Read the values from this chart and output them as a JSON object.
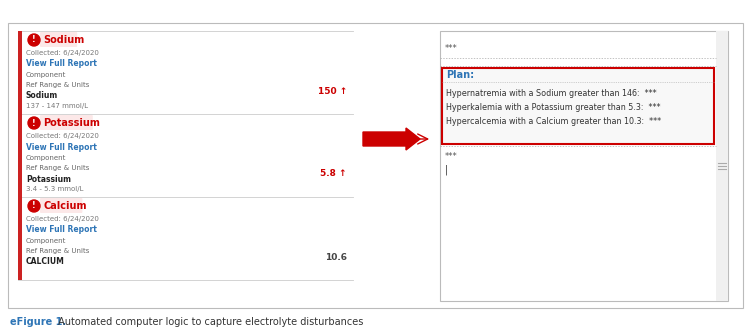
{
  "outer_border_color": "#cccccc",
  "caption_bold": "eFigure 1.",
  "caption_normal": " Automated computer logic to capture electrolyte disturbances",
  "caption_bold_color": "#2e75b6",
  "caption_normal_color": "#333333",
  "arrow_color": "#cc0000",
  "highlight_border": "#cc0000",
  "sections": [
    {
      "title": "Sodium",
      "icon_color": "#cc0000",
      "title_bg": "#fce4e4",
      "collected": "Collected: 6/24/2020",
      "link": "View Full Report",
      "field1": "Component",
      "field2": "Ref Range & Units",
      "label": "Sodium",
      "range": "137 - 147 mmol/L",
      "value": "150 ↑",
      "value_color": "#cc0000"
    },
    {
      "title": "Potassium",
      "icon_color": "#cc0000",
      "title_bg": "#fce4e4",
      "collected": "Collected: 6/24/2020",
      "link": "View Full Report",
      "field1": "Component",
      "field2": "Ref Range & Units",
      "label": "Potassium",
      "range": "3.4 - 5.3 mmol/L",
      "value": "5.8 ↑",
      "value_color": "#cc0000"
    },
    {
      "title": "Calcium",
      "icon_color": "#cc0000",
      "title_bg": "#fce4e4",
      "collected": "Collected: 6/24/2020",
      "link": "View Full Report",
      "field1": "Component",
      "field2": "Ref Range & Units",
      "label": "CALCIUM",
      "range": "",
      "value": "10.6",
      "value_color": "#444444"
    }
  ],
  "right_top_text": "***",
  "plan_label": "Plan:",
  "plan_label_color": "#2e75b6",
  "plan_lines": [
    "Hypernatremia with a Sodium greater than 146:  ***",
    "Hyperkalemia with a Potassium greater than 5.3:  ***",
    "Hypercalcemia with a Calcium greater than 10.3:  ***"
  ],
  "right_bottom_text": "***",
  "cursor": "|"
}
